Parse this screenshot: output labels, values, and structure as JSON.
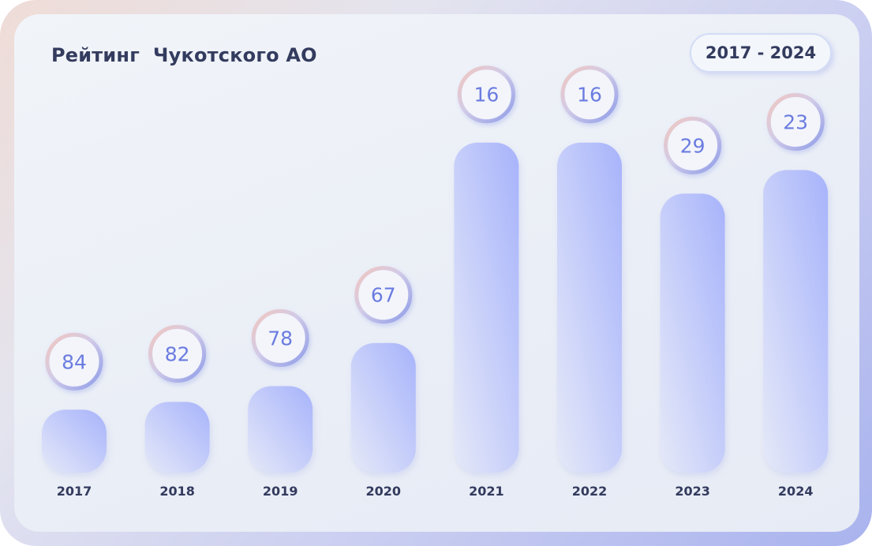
{
  "title": "Рейтинг  Чукотского АО",
  "period": "2017 - 2024",
  "colors": {
    "bar_top": "#a7b3fb",
    "bar_bottom": "#e5e9f8",
    "badge_ring": "#8f9de8",
    "badge_text": "#6b7cdf",
    "text": "#333b5e"
  },
  "chart_data": {
    "type": "bar",
    "categories": [
      "2017",
      "2018",
      "2019",
      "2020",
      "2021",
      "2022",
      "2023",
      "2024"
    ],
    "values": [
      84,
      82,
      78,
      67,
      16,
      16,
      29,
      23
    ],
    "value_meaning": "rank (lower value = taller bar)",
    "data_labels": [
      "84",
      "82",
      "78",
      "67",
      "16",
      "16",
      "29",
      "23"
    ],
    "grid": false,
    "legend": "none"
  }
}
